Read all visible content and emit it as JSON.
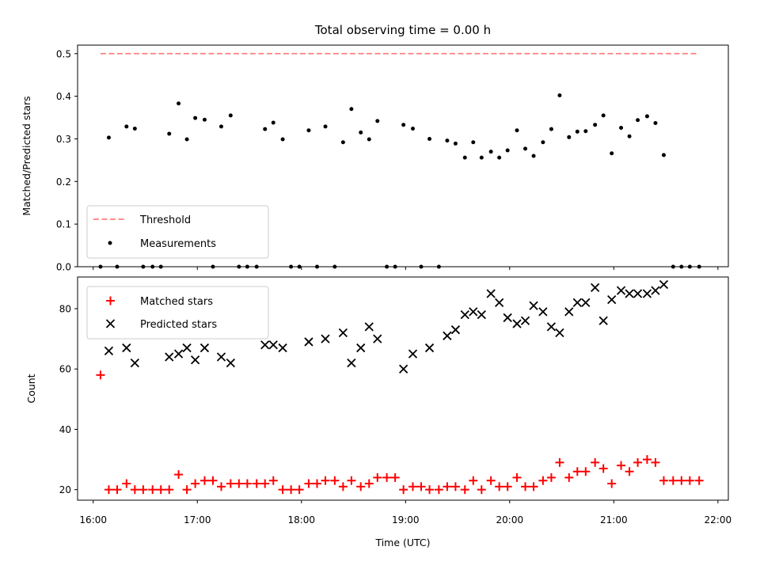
{
  "figure": {
    "title": "Total observing time = 0.00 h",
    "xlabel": "Time (UTC)",
    "x_ticks": [
      "16:00",
      "17:00",
      "18:00",
      "19:00",
      "20:00",
      "21:00",
      "22:00"
    ]
  },
  "chart_data": [
    {
      "type": "scatter",
      "ylabel": "Matched/Predicted stars",
      "xlim": [
        15.85,
        22.1
      ],
      "ylim": [
        0,
        0.52
      ],
      "y_ticks": [
        "0.0",
        "0.1",
        "0.2",
        "0.3",
        "0.4",
        "0.5"
      ],
      "y_tick_values": [
        0,
        0.1,
        0.2,
        0.3,
        0.4,
        0.5
      ],
      "legend_position": "lower-left",
      "threshold": {
        "name": "Threshold",
        "value": 0.5,
        "x_range": [
          16.07,
          21.82
        ],
        "color": "#ff7f7f"
      },
      "series": [
        {
          "name": "Measurements",
          "color": "#000000",
          "x": [
            16.07,
            16.15,
            16.23,
            16.32,
            16.4,
            16.48,
            16.57,
            16.65,
            16.73,
            16.82,
            16.9,
            16.98,
            17.07,
            17.15,
            17.23,
            17.32,
            17.4,
            17.48,
            17.57,
            17.65,
            17.73,
            17.82,
            17.9,
            17.98,
            18.07,
            18.15,
            18.23,
            18.32,
            18.4,
            18.48,
            18.57,
            18.65,
            18.73,
            18.82,
            18.9,
            18.98,
            19.07,
            19.15,
            19.23,
            19.32,
            19.4,
            19.48,
            19.57,
            19.65,
            19.73,
            19.82,
            19.9,
            19.98,
            20.07,
            20.15,
            20.23,
            20.32,
            20.4,
            20.48,
            20.57,
            20.65,
            20.73,
            20.82,
            20.9,
            20.98,
            21.07,
            21.15,
            21.23,
            21.32,
            21.4,
            21.48,
            21.57,
            21.65,
            21.73,
            21.82
          ],
          "y": [
            0,
            0.303,
            0,
            0.329,
            0.324,
            0,
            0,
            0,
            0.312,
            0.383,
            0.299,
            0.349,
            0.345,
            0,
            0.329,
            0.355,
            0,
            0,
            0,
            0.323,
            0.338,
            0.299,
            0,
            0,
            0.32,
            0,
            0.329,
            0,
            0.292,
            0.37,
            0.315,
            0.299,
            0.342,
            0,
            0,
            0.333,
            0.324,
            0,
            0.3,
            0,
            0.296,
            0.289,
            0.256,
            0.292,
            0.256,
            0.27,
            0.256,
            0.273,
            0.32,
            0.277,
            0.26,
            0.292,
            0.323,
            0.402,
            0.304,
            0.317,
            0.318,
            0.333,
            0.355,
            0.266,
            0.326,
            0.306,
            0.344,
            0.353,
            0.337,
            0.262,
            0,
            0,
            0,
            0
          ]
        }
      ]
    },
    {
      "type": "scatter",
      "ylabel": "Count",
      "xlim": [
        15.85,
        22.1
      ],
      "ylim": [
        16.5,
        90.5
      ],
      "y_ticks": [
        "20",
        "40",
        "60",
        "80"
      ],
      "y_tick_values": [
        20,
        40,
        60,
        80
      ],
      "legend_position": "top-left",
      "series": [
        {
          "name": "Matched stars",
          "marker": "plus",
          "color": "#ff0000",
          "x": [
            16.07,
            16.15,
            16.23,
            16.32,
            16.4,
            16.48,
            16.57,
            16.65,
            16.73,
            16.82,
            16.9,
            16.98,
            17.07,
            17.15,
            17.23,
            17.32,
            17.4,
            17.48,
            17.57,
            17.65,
            17.73,
            17.82,
            17.9,
            17.98,
            18.07,
            18.15,
            18.23,
            18.32,
            18.4,
            18.48,
            18.57,
            18.65,
            18.73,
            18.82,
            18.9,
            18.98,
            19.07,
            19.15,
            19.23,
            19.32,
            19.4,
            19.48,
            19.57,
            19.65,
            19.73,
            19.82,
            19.9,
            19.98,
            20.07,
            20.15,
            20.23,
            20.32,
            20.4,
            20.48,
            20.57,
            20.65,
            20.73,
            20.82,
            20.9,
            20.98,
            21.07,
            21.15,
            21.23,
            21.32,
            21.4,
            21.48,
            21.57,
            21.65,
            21.73,
            21.82
          ],
          "y": [
            58,
            20,
            20,
            22,
            20,
            20,
            20,
            20,
            20,
            25,
            20,
            22,
            23,
            23,
            21,
            22,
            22,
            22,
            22,
            22,
            23,
            20,
            20,
            20,
            22,
            22,
            23,
            23,
            21,
            23,
            21,
            22,
            24,
            24,
            24,
            20,
            21,
            21,
            20,
            20,
            21,
            21,
            20,
            23,
            20,
            23,
            21,
            21,
            24,
            21,
            21,
            23,
            24,
            29,
            24,
            26,
            26,
            29,
            27,
            22,
            28,
            26,
            29,
            30,
            29,
            23,
            23,
            23,
            23,
            23
          ]
        },
        {
          "name": "Predicted stars",
          "marker": "x",
          "color": "#000000",
          "x": [
            16.15,
            16.32,
            16.4,
            16.73,
            16.82,
            16.9,
            16.98,
            17.07,
            17.23,
            17.32,
            17.65,
            17.73,
            17.82,
            18.07,
            18.23,
            18.4,
            18.48,
            18.57,
            18.65,
            18.73,
            18.98,
            19.07,
            19.23,
            19.4,
            19.48,
            19.57,
            19.65,
            19.73,
            19.82,
            19.9,
            19.98,
            20.07,
            20.15,
            20.23,
            20.32,
            20.4,
            20.48,
            20.57,
            20.65,
            20.73,
            20.82,
            20.9,
            20.98,
            21.07,
            21.15,
            21.23,
            21.32,
            21.4,
            21.48
          ],
          "y": [
            66,
            67,
            62,
            64,
            65,
            67,
            63,
            67,
            64,
            62,
            68,
            68,
            67,
            69,
            70,
            72,
            62,
            67,
            74,
            70,
            60,
            65,
            67,
            71,
            73,
            78,
            79,
            78,
            85,
            82,
            77,
            75,
            76,
            81,
            79,
            74,
            72,
            79,
            82,
            82,
            87,
            76,
            83,
            86,
            85,
            85,
            85,
            86,
            88
          ]
        }
      ]
    }
  ]
}
